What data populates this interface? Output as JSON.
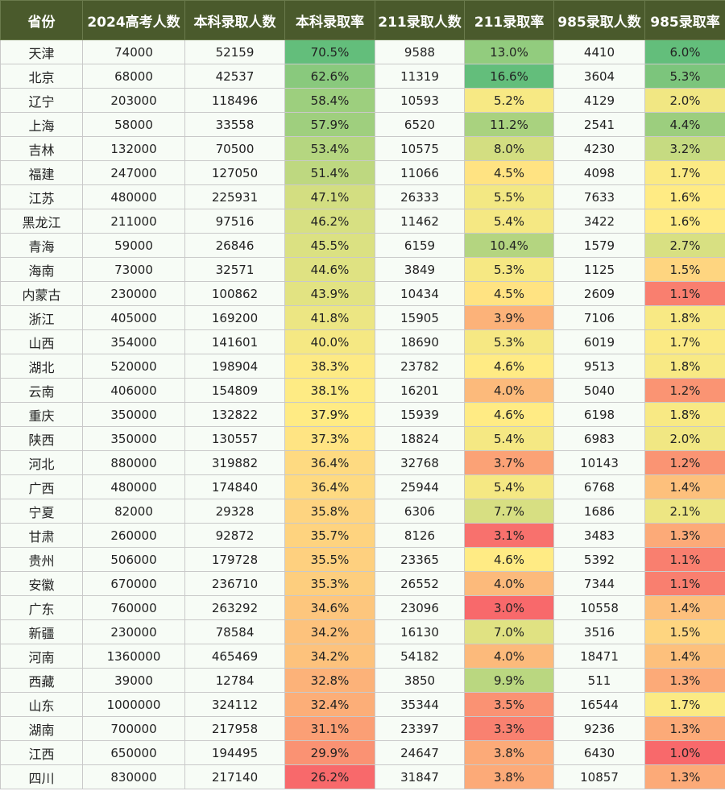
{
  "chart_data": {
    "type": "table",
    "columns": [
      "省份",
      "2024高考人数",
      "本科录取人数",
      "本科录取率",
      "211录取人数",
      "211录取率",
      "985录取人数",
      "985录取率"
    ],
    "rows": [
      [
        "天津",
        "74000",
        "52159",
        "70.5%",
        "9588",
        "13.0%",
        "4410",
        "6.0%"
      ],
      [
        "北京",
        "68000",
        "42537",
        "62.6%",
        "11319",
        "16.6%",
        "3604",
        "5.3%"
      ],
      [
        "辽宁",
        "203000",
        "118496",
        "58.4%",
        "10593",
        "5.2%",
        "4129",
        "2.0%"
      ],
      [
        "上海",
        "58000",
        "33558",
        "57.9%",
        "6520",
        "11.2%",
        "2541",
        "4.4%"
      ],
      [
        "吉林",
        "132000",
        "70500",
        "53.4%",
        "10575",
        "8.0%",
        "4230",
        "3.2%"
      ],
      [
        "福建",
        "247000",
        "127050",
        "51.4%",
        "11066",
        "4.5%",
        "4098",
        "1.7%"
      ],
      [
        "江苏",
        "480000",
        "225931",
        "47.1%",
        "26333",
        "5.5%",
        "7633",
        "1.6%"
      ],
      [
        "黑龙江",
        "211000",
        "97516",
        "46.2%",
        "11462",
        "5.4%",
        "3422",
        "1.6%"
      ],
      [
        "青海",
        "59000",
        "26846",
        "45.5%",
        "6159",
        "10.4%",
        "1579",
        "2.7%"
      ],
      [
        "海南",
        "73000",
        "32571",
        "44.6%",
        "3849",
        "5.3%",
        "1125",
        "1.5%"
      ],
      [
        "内蒙古",
        "230000",
        "100862",
        "43.9%",
        "10434",
        "4.5%",
        "2609",
        "1.1%"
      ],
      [
        "浙江",
        "405000",
        "169200",
        "41.8%",
        "15905",
        "3.9%",
        "7106",
        "1.8%"
      ],
      [
        "山西",
        "354000",
        "141601",
        "40.0%",
        "18690",
        "5.3%",
        "6019",
        "1.7%"
      ],
      [
        "湖北",
        "520000",
        "198904",
        "38.3%",
        "23782",
        "4.6%",
        "9513",
        "1.8%"
      ],
      [
        "云南",
        "406000",
        "154809",
        "38.1%",
        "16201",
        "4.0%",
        "5040",
        "1.2%"
      ],
      [
        "重庆",
        "350000",
        "132822",
        "37.9%",
        "15939",
        "4.6%",
        "6198",
        "1.8%"
      ],
      [
        "陕西",
        "350000",
        "130557",
        "37.3%",
        "18824",
        "5.4%",
        "6983",
        "2.0%"
      ],
      [
        "河北",
        "880000",
        "319882",
        "36.4%",
        "32768",
        "3.7%",
        "10143",
        "1.2%"
      ],
      [
        "广西",
        "480000",
        "174840",
        "36.4%",
        "25944",
        "5.4%",
        "6768",
        "1.4%"
      ],
      [
        "宁夏",
        "82000",
        "29328",
        "35.8%",
        "6306",
        "7.7%",
        "1686",
        "2.1%"
      ],
      [
        "甘肃",
        "260000",
        "92872",
        "35.7%",
        "8126",
        "3.1%",
        "3483",
        "1.3%"
      ],
      [
        "贵州",
        "506000",
        "179728",
        "35.5%",
        "23365",
        "4.6%",
        "5392",
        "1.1%"
      ],
      [
        "安徽",
        "670000",
        "236710",
        "35.3%",
        "26552",
        "4.0%",
        "7344",
        "1.1%"
      ],
      [
        "广东",
        "760000",
        "263292",
        "34.6%",
        "23096",
        "3.0%",
        "10558",
        "1.4%"
      ],
      [
        "新疆",
        "230000",
        "78584",
        "34.2%",
        "16130",
        "7.0%",
        "3516",
        "1.5%"
      ],
      [
        "河南",
        "1360000",
        "465469",
        "34.2%",
        "54182",
        "4.0%",
        "18471",
        "1.4%"
      ],
      [
        "西藏",
        "39000",
        "12784",
        "32.8%",
        "3850",
        "9.9%",
        "511",
        "1.3%"
      ],
      [
        "山东",
        "1000000",
        "324112",
        "32.4%",
        "35344",
        "3.5%",
        "16544",
        "1.7%"
      ],
      [
        "湖南",
        "700000",
        "217958",
        "31.1%",
        "23397",
        "3.3%",
        "9236",
        "1.3%"
      ],
      [
        "江西",
        "650000",
        "194495",
        "29.9%",
        "24647",
        "3.8%",
        "6430",
        "1.0%"
      ],
      [
        "四川",
        "830000",
        "217140",
        "26.2%",
        "31847",
        "3.8%",
        "10857",
        "1.3%"
      ]
    ],
    "heatmap_columns": [
      3,
      5,
      7
    ],
    "heatmap_colors": {
      "high": "#63be7b",
      "mid": "#ffeb84",
      "low": "#f8696b"
    }
  }
}
